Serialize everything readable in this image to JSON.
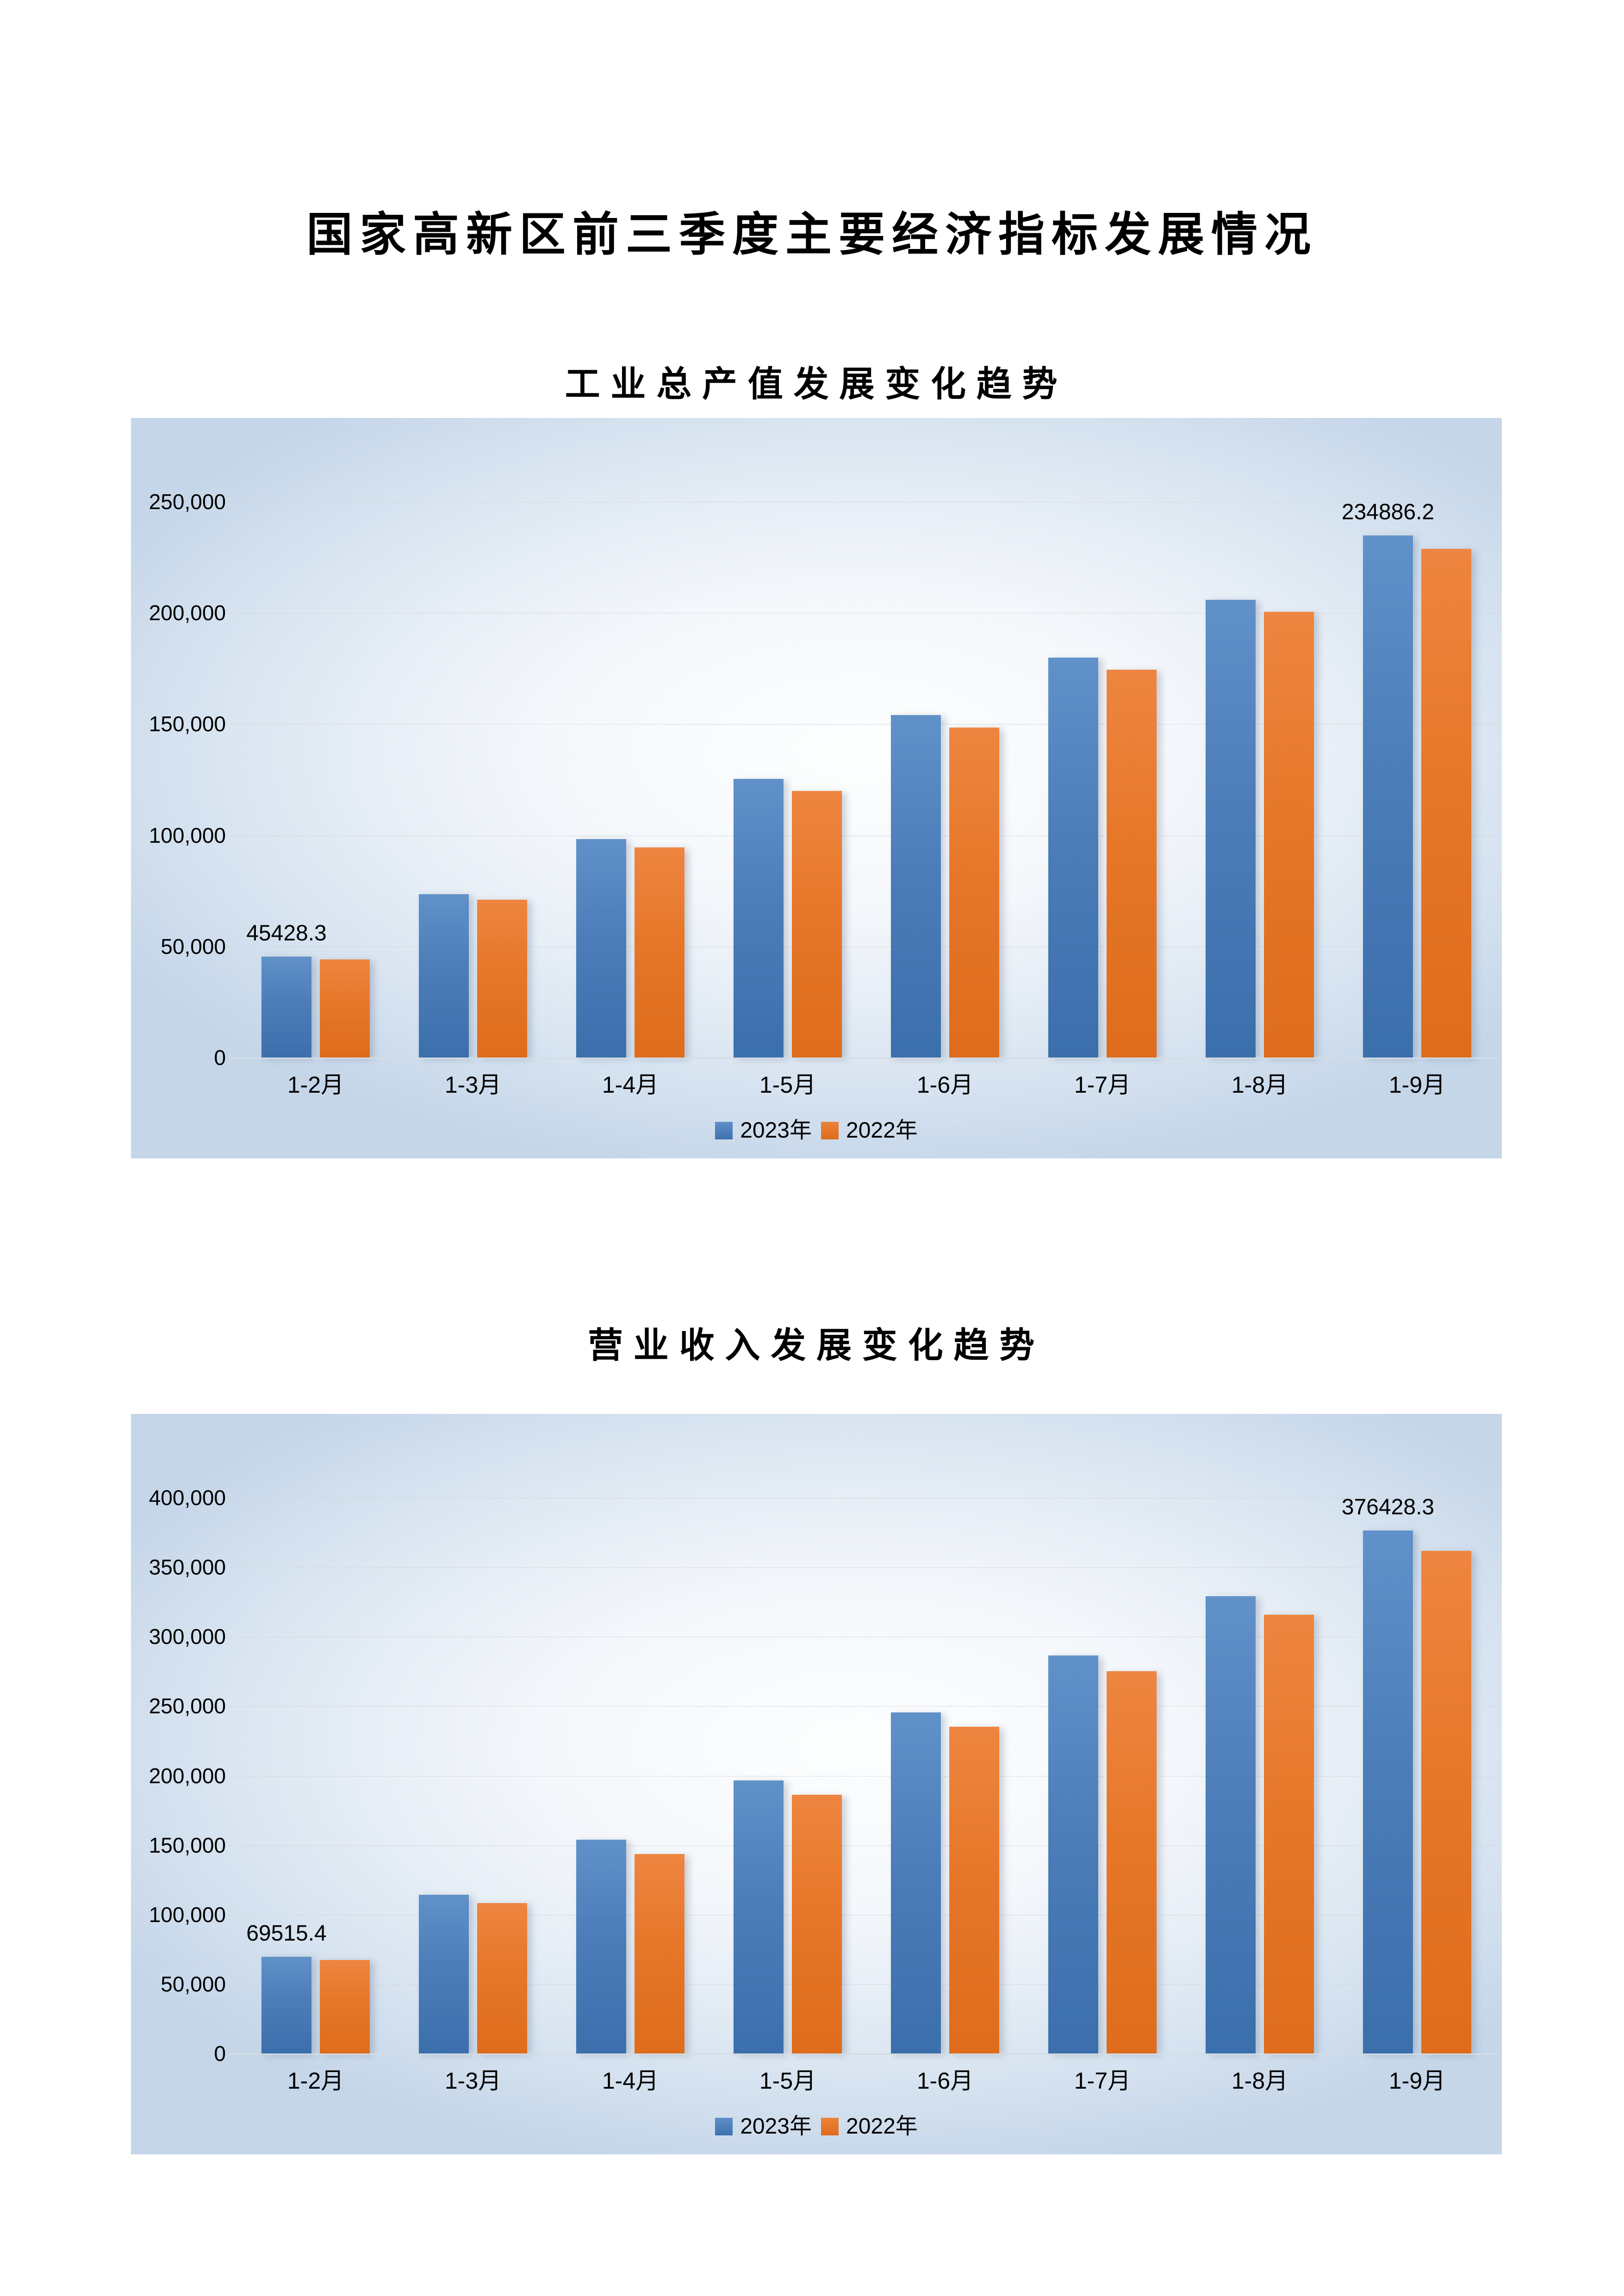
{
  "page": {
    "title": "国家高新区前三季度主要经济指标发展情况"
  },
  "colors": {
    "series_2023_top": "#6191C9",
    "series_2023_bottom": "#3B6FAC",
    "series_2022_top": "#EE8540",
    "series_2022_bottom": "#DE6C1C",
    "panel_edge": "#C5D6E9",
    "panel_center": "#FDFEFE",
    "gridline": "#D2D6DB",
    "axis_line": "#D5DCE4",
    "text": "#000000"
  },
  "chart_data": [
    {
      "type": "bar",
      "title": "工业总产值发展变化趋势",
      "categories": [
        "1-2月",
        "1-3月",
        "1-4月",
        "1-5月",
        "1-6月",
        "1-7月",
        "1-8月",
        "1-9月"
      ],
      "series": [
        {
          "name": "2023年",
          "values": [
            45428.3,
            73500,
            98300,
            125300,
            154000,
            179800,
            205900,
            234886.2
          ]
        },
        {
          "name": "2022年",
          "values": [
            44200,
            70900,
            94600,
            120000,
            148500,
            174500,
            200400,
            228700
          ]
        }
      ],
      "ylim": [
        0,
        250000
      ],
      "ytick_step": 50000,
      "ytick_labels": [
        "0",
        "50,000",
        "100,000",
        "150,000",
        "200,000",
        "250,000"
      ],
      "grid": true,
      "legend": [
        "2023年",
        "2022年"
      ],
      "legend_position": "bottom",
      "data_labels": [
        {
          "series": 0,
          "category": 0,
          "text": "45428.3"
        },
        {
          "series": 0,
          "category": 7,
          "text": "234886.2"
        }
      ]
    },
    {
      "type": "bar",
      "title": "营业收入发展变化趋势",
      "categories": [
        "1-2月",
        "1-3月",
        "1-4月",
        "1-5月",
        "1-6月",
        "1-7月",
        "1-8月",
        "1-9月"
      ],
      "series": [
        {
          "name": "2023年",
          "values": [
            69515.4,
            114200,
            153900,
            196600,
            245500,
            286400,
            329200,
            376428.3
          ]
        },
        {
          "name": "2022年",
          "values": [
            67400,
            108400,
            143600,
            186200,
            235300,
            275200,
            315800,
            361600
          ]
        }
      ],
      "ylim": [
        0,
        400000
      ],
      "ytick_step": 50000,
      "ytick_labels": [
        "0",
        "50,000",
        "100,000",
        "150,000",
        "200,000",
        "250,000",
        "300,000",
        "350,000",
        "400,000"
      ],
      "grid": true,
      "legend": [
        "2023年",
        "2022年"
      ],
      "legend_position": "bottom",
      "data_labels": [
        {
          "series": 0,
          "category": 0,
          "text": "69515.4"
        },
        {
          "series": 0,
          "category": 7,
          "text": "376428.3"
        }
      ]
    }
  ]
}
